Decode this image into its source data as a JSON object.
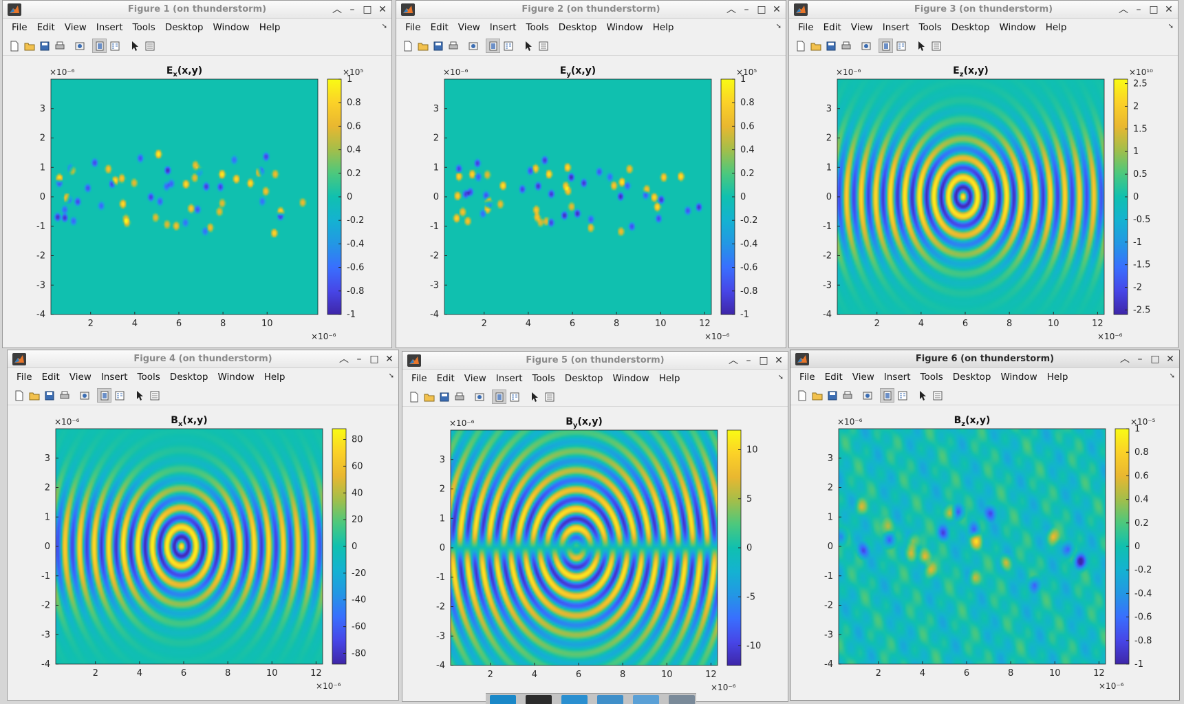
{
  "menu": [
    "File",
    "Edit",
    "View",
    "Insert",
    "Tools",
    "Desktop",
    "Window",
    "Help"
  ],
  "colormap": "parula",
  "figures": [
    {
      "window_title": "Figure 1 (on thunderstorm)",
      "active": false,
      "chart_data": {
        "type": "heatmap",
        "title": "E_x(x,y)",
        "title_main": "E",
        "title_sub": "x",
        "title_rest": "(x,y)",
        "field": "pointlike",
        "xlim": [
          0.2,
          12.3
        ],
        "ylim": [
          -4,
          4
        ],
        "xticks": [
          2,
          4,
          6,
          8,
          10
        ],
        "yticks": [
          -4,
          -3,
          -2,
          -1,
          0,
          1,
          2,
          3
        ],
        "xscale_label": "×10⁻⁶",
        "yscale_label": "×10⁻⁶",
        "clim": [
          -1,
          1
        ],
        "cticks": [
          "-1",
          "-0.8",
          "-0.6",
          "-0.4",
          "-0.2",
          "0",
          "0.2",
          "0.4",
          "0.6",
          "0.8",
          "1"
        ],
        "cscale_label": "×10⁵"
      }
    },
    {
      "window_title": "Figure 2 (on thunderstorm)",
      "active": false,
      "chart_data": {
        "type": "heatmap",
        "title": "E_y(x,y)",
        "title_main": "E",
        "title_sub": "y",
        "title_rest": "(x,y)",
        "field": "pointlike",
        "xlim": [
          0.2,
          12.3
        ],
        "ylim": [
          -4,
          4
        ],
        "xticks": [
          2,
          4,
          6,
          8,
          10,
          12
        ],
        "yticks": [
          -4,
          -3,
          -2,
          -1,
          0,
          1,
          2,
          3
        ],
        "xscale_label": "×10⁻⁶",
        "yscale_label": "×10⁻⁶",
        "clim": [
          -1,
          1
        ],
        "cticks": [
          "-1",
          "-0.8",
          "-0.6",
          "-0.4",
          "-0.2",
          "0",
          "0.2",
          "0.4",
          "0.6",
          "0.8",
          "1"
        ],
        "cscale_label": "×10⁵"
      }
    },
    {
      "window_title": "Figure 3 (on thunderstorm)",
      "active": false,
      "chart_data": {
        "type": "heatmap",
        "title": "E_z(x,y)",
        "title_main": "E",
        "title_sub": "z",
        "title_rest": "(x,y)",
        "field": "wave",
        "xlim": [
          0.2,
          12.3
        ],
        "ylim": [
          -4,
          4
        ],
        "xticks": [
          2,
          4,
          6,
          8,
          10,
          12
        ],
        "yticks": [
          -4,
          -3,
          -2,
          -1,
          0,
          1,
          2,
          3
        ],
        "xscale_label": "×10⁻⁶",
        "yscale_label": "×10⁻⁶",
        "clim": [
          -2.6,
          2.6
        ],
        "cticks": [
          "-2.5",
          "-2",
          "-1.5",
          "-1",
          "-0.5",
          "0",
          "0.5",
          "1",
          "1.5",
          "2",
          "2.5"
        ],
        "cscale_label": "×10¹⁰"
      }
    },
    {
      "window_title": "Figure 4 (on thunderstorm)",
      "active": false,
      "chart_data": {
        "type": "heatmap",
        "title": "B_x(x,y)",
        "title_main": "B",
        "title_sub": "x",
        "title_rest": "(x,y)",
        "field": "wave",
        "xlim": [
          0.2,
          12.3
        ],
        "ylim": [
          -4,
          4
        ],
        "xticks": [
          2,
          4,
          6,
          8,
          10,
          12
        ],
        "yticks": [
          -4,
          -3,
          -2,
          -1,
          0,
          1,
          2,
          3
        ],
        "xscale_label": "×10⁻⁶",
        "yscale_label": "×10⁻⁶",
        "clim": [
          -88,
          88
        ],
        "cticks": [
          "-80",
          "-60",
          "-40",
          "-20",
          "0",
          "20",
          "40",
          "60",
          "80"
        ],
        "cscale_label": ""
      }
    },
    {
      "window_title": "Figure 5 (on thunderstorm)",
      "active": false,
      "chart_data": {
        "type": "heatmap",
        "title": "B_y(x,y)",
        "title_main": "B",
        "title_sub": "y",
        "title_rest": "(x,y)",
        "field": "split",
        "xlim": [
          0.2,
          12.3
        ],
        "ylim": [
          -4,
          4
        ],
        "xticks": [
          2,
          4,
          6,
          8,
          10,
          12
        ],
        "yticks": [
          -4,
          -3,
          -2,
          -1,
          0,
          1,
          2,
          3
        ],
        "xscale_label": "×10⁻⁶",
        "yscale_label": "×10⁻⁶",
        "clim": [
          -12,
          12
        ],
        "cticks": [
          "-10",
          "-5",
          "0",
          "5",
          "10"
        ],
        "cscale_label": ""
      }
    },
    {
      "window_title": "Figure 6 (on thunderstorm)",
      "active": true,
      "chart_data": {
        "type": "heatmap",
        "title": "B_z(x,y)",
        "title_main": "B",
        "title_sub": "z",
        "title_rest": "(x,y)",
        "field": "noise",
        "xlim": [
          0.2,
          12.3
        ],
        "ylim": [
          -4,
          4
        ],
        "xticks": [
          2,
          4,
          6,
          8,
          10,
          12
        ],
        "yticks": [
          -4,
          -3,
          -2,
          -1,
          0,
          1,
          2,
          3
        ],
        "xscale_label": "×10⁻⁶",
        "yscale_label": "×10⁻⁶",
        "clim": [
          -1,
          1
        ],
        "cticks": [
          "-1",
          "-0.8",
          "-0.6",
          "-0.4",
          "-0.2",
          "0",
          "0.2",
          "0.4",
          "0.6",
          "0.8",
          "1"
        ],
        "cscale_label": "×10⁻⁵"
      }
    }
  ]
}
